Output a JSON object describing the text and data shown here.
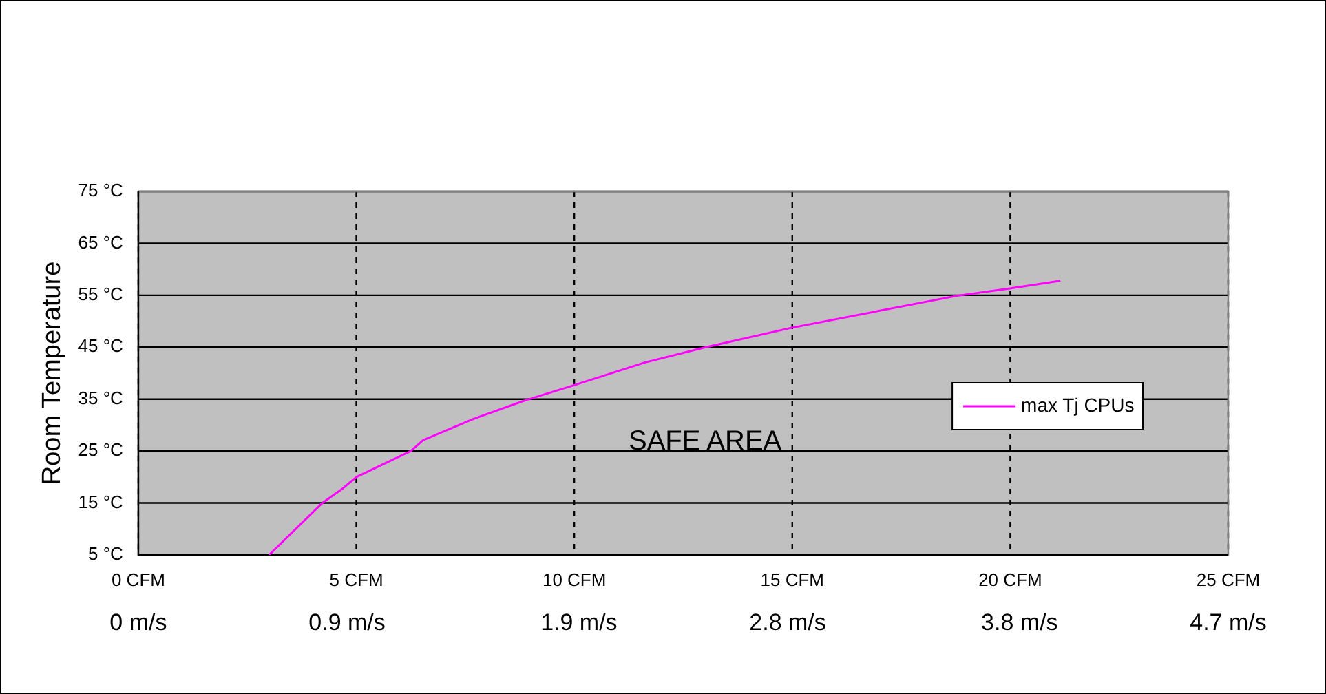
{
  "chart_data": {
    "type": "line",
    "ylabel": "Room Temperature",
    "annotations": [
      "SAFE AREA"
    ],
    "x": [
      3.0,
      4.22,
      4.69,
      5.0,
      6.25,
      6.53,
      7.69,
      8.85,
      10.0,
      11.6,
      12.97,
      14.96,
      18.78,
      19.99,
      21.15
    ],
    "series": [
      {
        "name": "max Tj CPUs",
        "color": "#ff00ff",
        "values": [
          5,
          15.0,
          17.8,
          20.0,
          25,
          27.1,
          31.2,
          34.7,
          37.7,
          42.0,
          44.9,
          48.7,
          54.9,
          56.3,
          57.8
        ]
      }
    ],
    "xlim": [
      0,
      25
    ],
    "xticks": [
      {
        "value": 0,
        "label": "0 CFM"
      },
      {
        "value": 5,
        "label": "5 CFM"
      },
      {
        "value": 10,
        "label": "10 CFM"
      },
      {
        "value": 15,
        "label": "15 CFM"
      },
      {
        "value": 20,
        "label": "20 CFM"
      },
      {
        "value": 25,
        "label": "25 CFM"
      }
    ],
    "x2lim": [
      0,
      4.7
    ],
    "x2ticks": [
      {
        "value": 0,
        "label": "0 m/s"
      },
      {
        "value": 0.9,
        "label": "0.9 m/s"
      },
      {
        "value": 1.9,
        "label": "1.9 m/s"
      },
      {
        "value": 2.8,
        "label": "2.8 m/s"
      },
      {
        "value": 3.8,
        "label": "3.8 m/s"
      },
      {
        "value": 4.7,
        "label": "4.7 m/s"
      }
    ],
    "ylim": [
      5,
      75
    ],
    "yticks": [
      {
        "value": 5,
        "label": "5 °C"
      },
      {
        "value": 15,
        "label": "15 °C"
      },
      {
        "value": 25,
        "label": "25 °C"
      },
      {
        "value": 35,
        "label": "35 °C"
      },
      {
        "value": 45,
        "label": "45 °C"
      },
      {
        "value": 55,
        "label": "55 °C"
      },
      {
        "value": 65,
        "label": "65 °C"
      },
      {
        "value": 75,
        "label": "75 °C"
      }
    ],
    "grid": true,
    "legend": "right",
    "marker": "none",
    "line_style": "solid"
  }
}
